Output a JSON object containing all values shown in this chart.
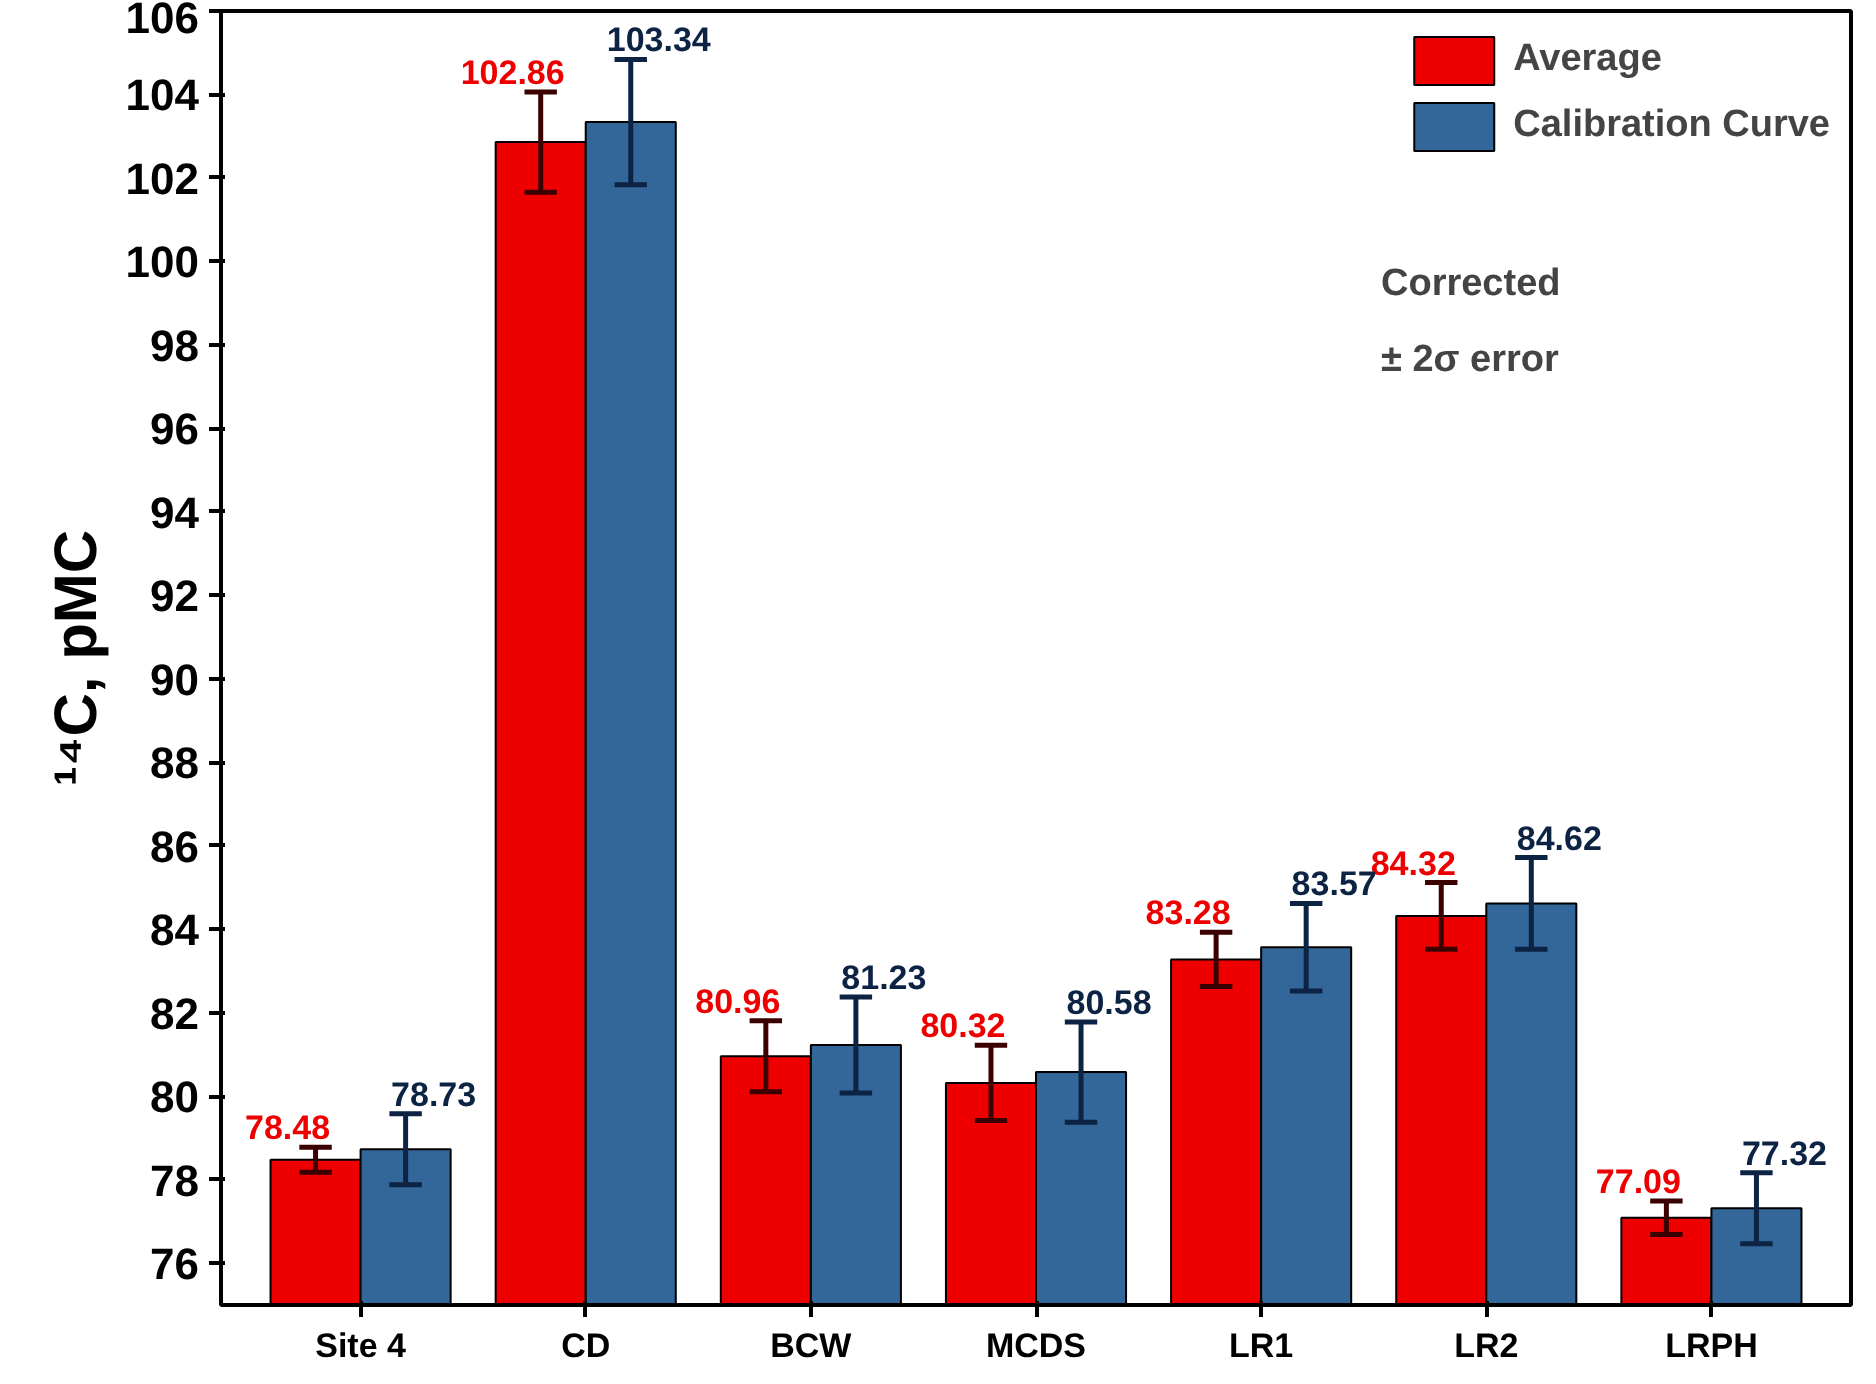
{
  "chart_data": {
    "type": "bar",
    "ylabel": "¹⁴C, pMC",
    "categories": [
      "Site 4",
      "CD",
      "BCW",
      "MCDS",
      "LR1",
      "LR2",
      "LRPH"
    ],
    "series": [
      {
        "name": "Average",
        "color": "#ee0000",
        "values": [
          78.48,
          102.86,
          80.96,
          80.32,
          83.28,
          84.32,
          77.09
        ],
        "errors": [
          0.3,
          1.2,
          0.85,
          0.9,
          0.65,
          0.8,
          0.4
        ]
      },
      {
        "name": "Calibration Curve",
        "color": "#336699",
        "values": [
          78.73,
          103.34,
          81.23,
          80.58,
          83.57,
          84.62,
          77.32
        ],
        "errors": [
          0.85,
          1.5,
          1.15,
          1.2,
          1.05,
          1.1,
          0.85
        ]
      }
    ],
    "ylim": [
      75,
      106
    ],
    "yticks": [
      76,
      78,
      80,
      82,
      84,
      86,
      88,
      90,
      92,
      94,
      96,
      98,
      100,
      102,
      104,
      106
    ],
    "data_labels": true,
    "legend": "top right",
    "grid": false,
    "annotations": [
      "Corrected",
      "± 2σ error"
    ]
  }
}
